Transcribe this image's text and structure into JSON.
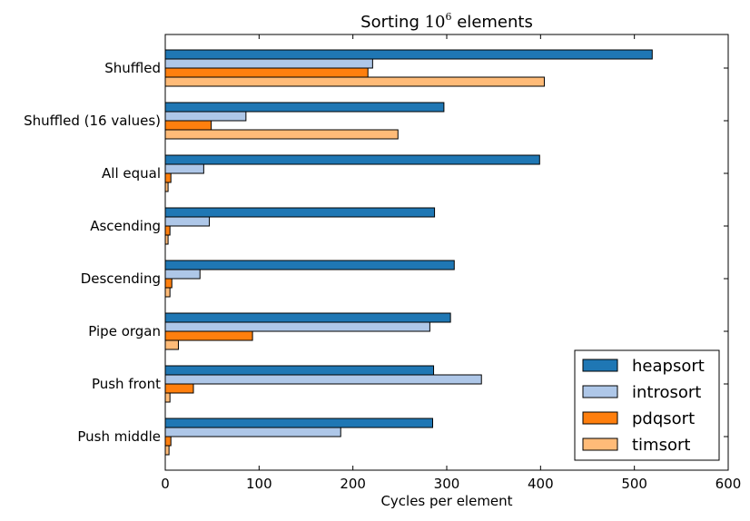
{
  "chart_data": {
    "type": "bar",
    "orientation": "horizontal",
    "title": "Sorting 10^6 elements",
    "title_prefix": "Sorting ",
    "title_base": "10",
    "title_exp": "6",
    "title_suffix": " elements",
    "xlabel": "Cycles per element",
    "ylabel": "",
    "xlim": [
      0,
      600
    ],
    "xticks": [
      "0",
      "100",
      "200",
      "300",
      "400",
      "500",
      "600"
    ],
    "categories": [
      "Shuffled",
      "Shuffled (16 values)",
      "All equal",
      "Ascending",
      "Descending",
      "Pipe organ",
      "Push front",
      "Push middle"
    ],
    "series": [
      {
        "name": "heapsort",
        "color": "#1f77b4",
        "values": [
          519,
          297,
          399,
          287,
          308,
          304,
          286,
          285
        ]
      },
      {
        "name": "introsort",
        "color": "#aec7e8",
        "values": [
          221,
          86,
          41,
          47,
          37,
          282,
          337,
          187
        ]
      },
      {
        "name": "pdqsort",
        "color": "#ff7f0e",
        "values": [
          216,
          49,
          6,
          5,
          7,
          93,
          30,
          6
        ]
      },
      {
        "name": "timsort",
        "color": "#ffbb78",
        "values": [
          404,
          248,
          3,
          3,
          5,
          14,
          5,
          4
        ]
      }
    ],
    "legend_position": "lower-right",
    "grid": false
  }
}
